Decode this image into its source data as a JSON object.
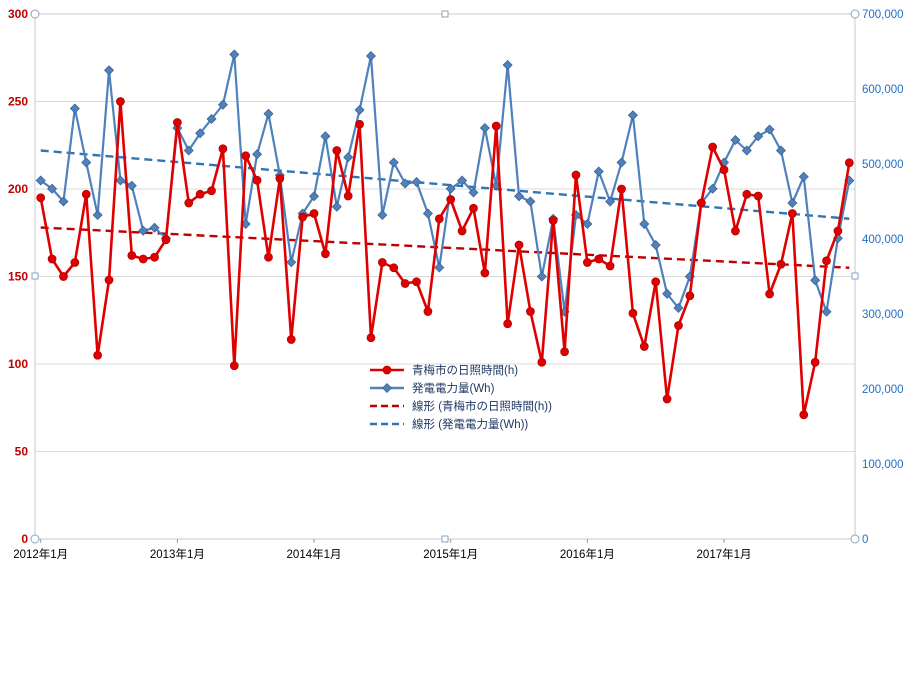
{
  "chart_data": {
    "type": "line",
    "title": "",
    "n_points": 72,
    "x_start": "2012-01",
    "x_interval": "month",
    "x_ticks": [
      {
        "index": 0,
        "label": "2012年1月"
      },
      {
        "index": 12,
        "label": "2013年1月"
      },
      {
        "index": 24,
        "label": "2014年1月"
      },
      {
        "index": 36,
        "label": "2015年1月"
      },
      {
        "index": 48,
        "label": "2016年1月"
      },
      {
        "index": 60,
        "label": "2017年1月"
      }
    ],
    "left_axis": {
      "min": 0,
      "max": 300,
      "step": 50,
      "color": "#c00000"
    },
    "right_axis": {
      "min": 0,
      "max": 700000,
      "step": 100000,
      "color": "#1f6fc5",
      "format": "comma"
    },
    "grid": {
      "horizontal": true,
      "vertical": false,
      "color": "#d9d9d9"
    },
    "plot_border_color": "#c9c9c9",
    "series": [
      {
        "name": "青梅市の日照時間(h)",
        "axis": "left",
        "color": "#e00000",
        "marker": "circle",
        "values": [
          195,
          160,
          150,
          158,
          197,
          105,
          148,
          250,
          162,
          160,
          161,
          171,
          238,
          192,
          197,
          199,
          223,
          99,
          219,
          205,
          161,
          206,
          114,
          184,
          186,
          163,
          222,
          196,
          237,
          115,
          158,
          155,
          146,
          147,
          130,
          183,
          194,
          176,
          189,
          152,
          236,
          123,
          168,
          130,
          101,
          182,
          107,
          208,
          158,
          160,
          156,
          200,
          129,
          110,
          147,
          80,
          122,
          139,
          192,
          224,
          211,
          176,
          197,
          196,
          140,
          157,
          186,
          71,
          101,
          159,
          176,
          215
        ]
      },
      {
        "name": "発電電力量(Wh)",
        "axis": "right",
        "color": "#4f81bd",
        "marker": "diamond",
        "values": [
          478000,
          467000,
          450000,
          574000,
          502000,
          432000,
          625000,
          478000,
          471000,
          411000,
          415000,
          401000,
          548000,
          518000,
          541000,
          560000,
          579000,
          646000,
          420000,
          513000,
          567000,
          485000,
          369000,
          434000,
          457000,
          537000,
          443000,
          509000,
          572000,
          644000,
          432000,
          502000,
          474000,
          476000,
          434000,
          362000,
          467000,
          478000,
          462000,
          548000,
          471000,
          632000,
          457000,
          450000,
          350000,
          427000,
          303000,
          432000,
          420000,
          490000,
          450000,
          502000,
          565000,
          420000,
          392000,
          327000,
          308000,
          350000,
          448000,
          467000,
          502000,
          532000,
          518000,
          537000,
          546000,
          518000,
          448000,
          483000,
          345000,
          303000,
          401000,
          478000
        ]
      }
    ],
    "trend_lines": [
      {
        "name": "線形 (青梅市の日照時間(h))",
        "axis": "left",
        "color": "#c00000",
        "style": "dashed",
        "start": 178,
        "end": 155
      },
      {
        "name": "線形 (発電電力量(Wh))",
        "axis": "right",
        "color": "#2e75b6",
        "style": "dashed",
        "start": 518000,
        "end": 427000
      }
    ],
    "legend": {
      "position": "inside-center-bottom",
      "text_color": "#1f3864",
      "entries": [
        {
          "label": "青梅市の日照時間(h)",
          "color": "#e00000",
          "line": "solid",
          "marker": "circle"
        },
        {
          "label": "発電電力量(Wh)",
          "color": "#4f81bd",
          "line": "solid",
          "marker": "diamond"
        },
        {
          "label": "線形 (青梅市の日照時間(h))",
          "color": "#c00000",
          "line": "dashed",
          "marker": "none"
        },
        {
          "label": "線形 (発電電力量(Wh))",
          "color": "#2e75b6",
          "line": "dashed",
          "marker": "none"
        }
      ]
    }
  }
}
